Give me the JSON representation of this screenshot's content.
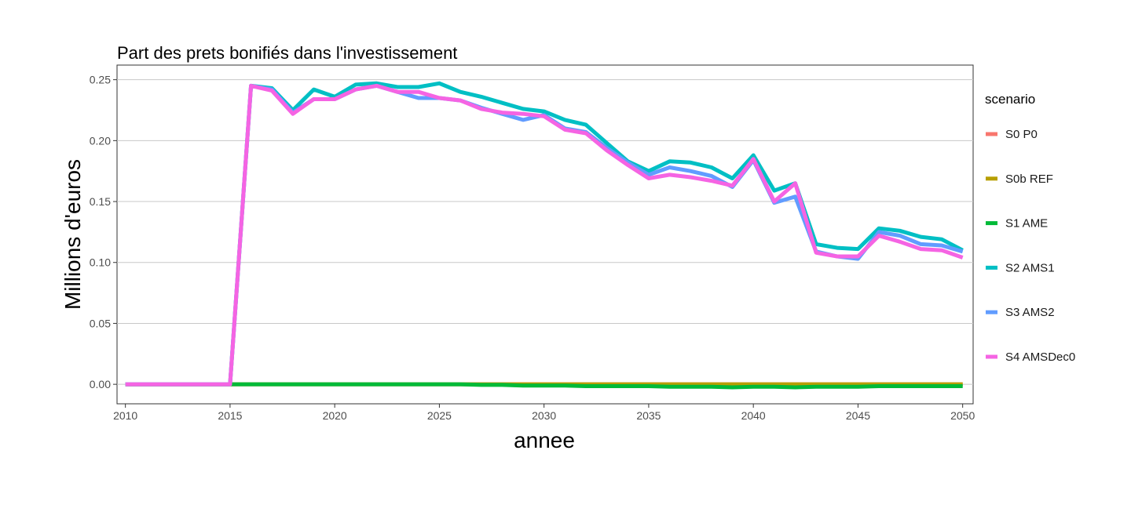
{
  "chart_data": {
    "type": "line",
    "title": "Part des prets bonifiés dans l'investissement",
    "xlabel": "annee",
    "ylabel": "Millions d'euros",
    "xlim": [
      2009.6,
      2050.5
    ],
    "ylim": [
      -0.016,
      0.262
    ],
    "x_ticks": [
      2010,
      2015,
      2020,
      2025,
      2030,
      2035,
      2040,
      2045,
      2050
    ],
    "x_tick_labels": [
      "2010",
      "2015",
      "2020",
      "2025",
      "2030",
      "2035",
      "2040",
      "2045",
      "2050"
    ],
    "y_ticks": [
      0.0,
      0.05,
      0.1,
      0.15,
      0.2,
      0.25
    ],
    "y_tick_labels": [
      "0.00",
      "0.05",
      "0.10",
      "0.15",
      "0.20",
      "0.25"
    ],
    "grid": "horizontal",
    "legend_title": "scenario",
    "legend_position": "right",
    "x": [
      2010,
      2011,
      2012,
      2013,
      2014,
      2015,
      2016,
      2017,
      2018,
      2019,
      2020,
      2021,
      2022,
      2023,
      2024,
      2025,
      2026,
      2027,
      2028,
      2029,
      2030,
      2031,
      2032,
      2033,
      2034,
      2035,
      2036,
      2037,
      2038,
      2039,
      2040,
      2041,
      2042,
      2043,
      2044,
      2045,
      2046,
      2047,
      2048,
      2049,
      2050
    ],
    "series": [
      {
        "name": "S0 P0",
        "color": "#F8766D",
        "values": [
          0,
          0,
          0,
          0,
          0,
          0,
          0,
          0,
          0,
          0,
          0,
          0,
          0,
          0,
          0,
          0,
          0,
          0,
          0,
          0,
          0,
          0,
          0,
          0,
          0,
          0,
          0,
          0,
          0,
          0,
          0,
          0,
          0,
          0,
          0,
          0,
          0,
          0,
          0,
          0,
          0
        ]
      },
      {
        "name": "S0b REF",
        "color": "#B79F00",
        "values": [
          0,
          0,
          0,
          0,
          0,
          0,
          0,
          0,
          0,
          0,
          0,
          0,
          0,
          0,
          0,
          0,
          0,
          0,
          0,
          0,
          0,
          0,
          0,
          0,
          0,
          0,
          0,
          0,
          0,
          0,
          0,
          0,
          0,
          0,
          0,
          0,
          0,
          0,
          0,
          0,
          0
        ]
      },
      {
        "name": "S1 AME",
        "color": "#00BA38",
        "values": [
          0,
          0,
          0,
          0,
          0,
          0,
          0,
          0,
          0,
          0,
          0,
          0,
          0,
          0,
          0,
          0,
          0,
          -0.0005,
          -0.0005,
          -0.001,
          -0.001,
          -0.001,
          -0.0015,
          -0.0015,
          -0.0015,
          -0.0015,
          -0.002,
          -0.002,
          -0.002,
          -0.0025,
          -0.002,
          -0.002,
          -0.0025,
          -0.002,
          -0.002,
          -0.002,
          -0.0015,
          -0.0015,
          -0.0015,
          -0.0015,
          -0.0015
        ]
      },
      {
        "name": "S2 AMS1",
        "color": "#00BFC4",
        "values": [
          0,
          0,
          0,
          0,
          0,
          0,
          0.245,
          0.243,
          0.225,
          0.242,
          0.236,
          0.246,
          0.247,
          0.244,
          0.244,
          0.247,
          0.24,
          0.236,
          0.231,
          0.226,
          0.224,
          0.217,
          0.213,
          0.198,
          0.183,
          0.175,
          0.183,
          0.182,
          0.178,
          0.169,
          0.188,
          0.159,
          0.165,
          0.115,
          0.112,
          0.111,
          0.128,
          0.126,
          0.121,
          0.119,
          0.11
        ]
      },
      {
        "name": "S3 AMS2",
        "color": "#619CFF",
        "values": [
          0,
          0,
          0,
          0,
          0,
          0,
          0.245,
          0.242,
          0.223,
          0.234,
          0.234,
          0.242,
          0.245,
          0.24,
          0.235,
          0.235,
          0.233,
          0.227,
          0.222,
          0.217,
          0.221,
          0.21,
          0.207,
          0.194,
          0.182,
          0.172,
          0.178,
          0.175,
          0.171,
          0.162,
          0.184,
          0.149,
          0.154,
          0.109,
          0.105,
          0.103,
          0.125,
          0.122,
          0.115,
          0.114,
          0.109
        ]
      },
      {
        "name": "S4 AMSDec0",
        "color": "#F564E3",
        "values": [
          0,
          0,
          0,
          0,
          0,
          0,
          0.245,
          0.241,
          0.222,
          0.234,
          0.234,
          0.242,
          0.245,
          0.24,
          0.24,
          0.235,
          0.233,
          0.226,
          0.223,
          0.222,
          0.22,
          0.209,
          0.206,
          0.192,
          0.18,
          0.169,
          0.172,
          0.17,
          0.167,
          0.163,
          0.185,
          0.15,
          0.165,
          0.108,
          0.105,
          0.105,
          0.122,
          0.117,
          0.111,
          0.11,
          0.104
        ]
      }
    ]
  }
}
